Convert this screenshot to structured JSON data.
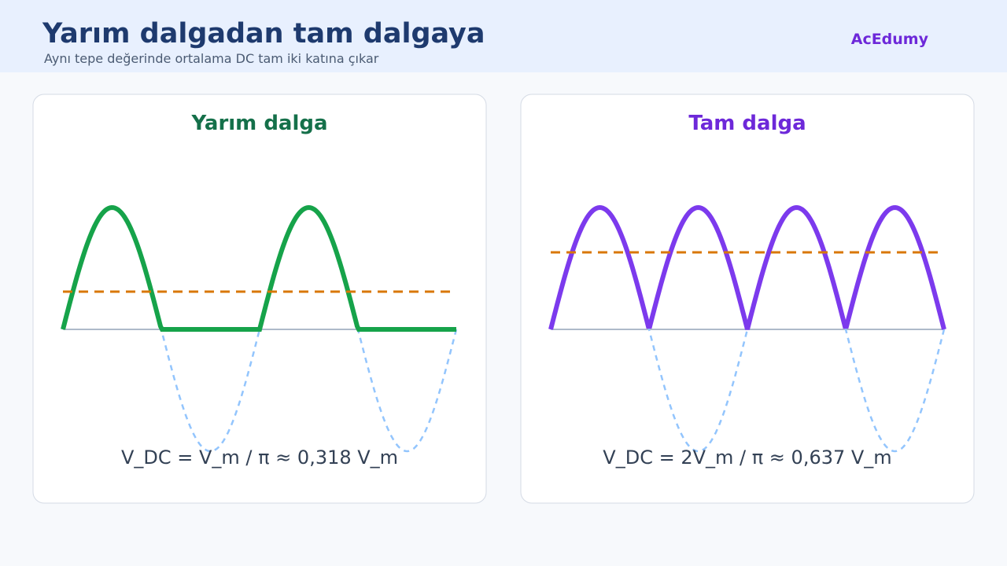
{
  "header": {
    "title": "Yarım dalgadan tam dalgaya",
    "subtitle": "Aynı tepe değerinde ortalama DC tam iki katına çıkar",
    "brand": "AcEdumy"
  },
  "panels": [
    {
      "title": "Yarım dalga",
      "formula": "V_DC = V_m / π ≈ 0,318 V_m"
    },
    {
      "title": "Tam dalga",
      "formula": "V_DC = 2V_m / π ≈ 0,637 V_m"
    }
  ]
}
